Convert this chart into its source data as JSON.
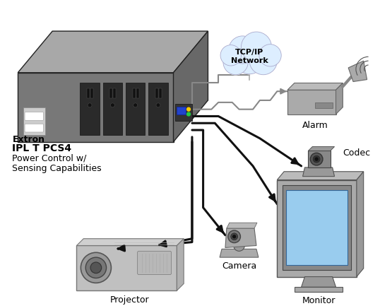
{
  "background_color": "#ffffff",
  "device_label_line1": "Extron",
  "device_label_line2": "IPL T PCS4",
  "device_label_line3": "Power Control w/\nSensing Capabilities",
  "network_label": "TCP/IP\nNetwork",
  "alarm_label": "Alarm",
  "codec_label": "Codec",
  "monitor_label": "Monitor",
  "camera_label": "Camera",
  "projector_label": "Projector",
  "box_top_color": "#a8a8a8",
  "box_front_color": "#787878",
  "box_right_color": "#686868",
  "box_edge_color": "#222222",
  "slot_color": "#2a2a2a",
  "cloud_fill": "#ddeeff",
  "cloud_edge": "#aaaacc",
  "alarm_box_color": "#999999",
  "alarm_box_dark": "#777777",
  "device_gray": "#aaaaaa",
  "device_mid": "#888888",
  "device_dark": "#666666",
  "monitor_screen": "#99ccee",
  "cable_color": "#111111",
  "gray_cable": "#888888",
  "label_fs": 9,
  "bold_fs": 9
}
